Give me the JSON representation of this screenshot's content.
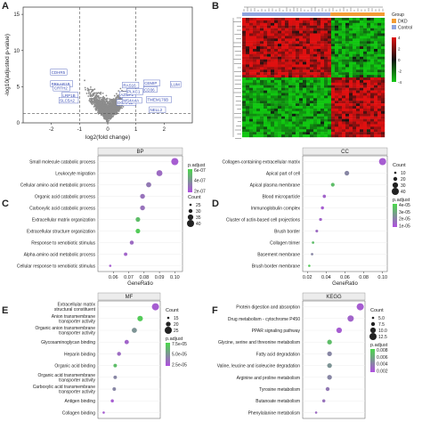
{
  "panels": {
    "A": "A",
    "B": "B",
    "C": "C",
    "D": "D",
    "E": "E",
    "F": "F"
  },
  "colors": {
    "up": "#c81e1e",
    "down": "#e8a33a",
    "ns": "#8c8c8c",
    "heat_high": "#e01010",
    "heat_low": "#11c711",
    "heat_mid": "#111111",
    "dkd": "#f39c34",
    "control": "#8fa5df",
    "padj_high": "#4ad94a",
    "padj_low": "#b04fe0"
  },
  "chart_data": [
    {
      "type": "scatter",
      "panel": "A",
      "xlabel": "log2(fold change)",
      "ylabel": "-log10(adjusted p-value)",
      "xlim": [
        -3,
        3
      ],
      "ylim": [
        0,
        16
      ],
      "xticks": [
        "-2",
        "-1",
        "0",
        "1",
        "2"
      ],
      "yticks": [
        "0",
        "5",
        "10",
        "15"
      ],
      "labeled_genes": [
        "CDHR5",
        "PRKAR1B",
        "CRTH2",
        "LRP1B",
        "SLC5A2",
        "RAS16",
        "AZGP1",
        "PLXC1",
        "CEMIP",
        "CD36",
        "DCAF12",
        "MS4A4A",
        "LUM",
        "NELL2",
        "TMEM176B"
      ]
    },
    {
      "type": "heatmap",
      "panel": "B",
      "legend_title": "Group",
      "groups": [
        "DKD",
        "Control"
      ],
      "scale_ticks": [
        "4",
        "2",
        "0",
        "-2",
        "-4"
      ]
    },
    {
      "type": "scatter",
      "panel": "C",
      "title": "BP",
      "xlabel": "GeneRatio",
      "xlim": [
        0.05,
        0.105
      ],
      "xticks": [
        "0.06",
        "0.07",
        "0.08",
        "0.09",
        "0.10"
      ],
      "categories": [
        "Small molecule catabolic process",
        "Leukocyte migration",
        "Cellular amino acid metabolic process",
        "Organic acid catabolic process",
        "Carboxylic acid catabolic process",
        "Extracellular matrix organization",
        "Extracellular structure organization",
        "Response to xenobiotic stimulus",
        "Alpha-amino acid metabolic process",
        "Cellular response to xenobiotic stimulus"
      ],
      "x": [
        0.1,
        0.09,
        0.083,
        0.079,
        0.079,
        0.076,
        0.076,
        0.072,
        0.068,
        0.058
      ],
      "count": [
        42,
        38,
        35,
        34,
        34,
        33,
        33,
        31,
        29,
        25
      ],
      "padj_legend": [
        "6e-07",
        "4e-07",
        "2e-07"
      ],
      "padj_color": [
        0.9,
        0.8,
        0.7,
        0.75,
        0.75,
        0.2,
        0.1,
        0.8,
        0.85,
        0.9
      ],
      "count_legend": [
        "25",
        "30",
        "35",
        "40"
      ]
    },
    {
      "type": "scatter",
      "panel": "D",
      "title": "CC",
      "xlabel": "GeneRatio",
      "xlim": [
        0.015,
        0.105
      ],
      "xticks": [
        "0.02",
        "0.04",
        "0.06",
        "0.08",
        "0.10"
      ],
      "categories": [
        "Collagen-containing extracellular matrix",
        "Apical part of cell",
        "Apical plasma membrane",
        "Blood microparticle",
        "Immunoglobulin complex",
        "Cluster of actin-based cell projections",
        "Brush border",
        "Collagen trimer",
        "Basement membrane",
        "Brush border membrane"
      ],
      "x": [
        0.1,
        0.062,
        0.047,
        0.038,
        0.036,
        0.034,
        0.03,
        0.026,
        0.025,
        0.022
      ],
      "count": [
        40,
        24,
        18,
        15,
        14,
        13,
        12,
        10,
        10,
        9
      ],
      "padj_legend": [
        "4e-05",
        "3e-05",
        "2e-05",
        "1e-05"
      ],
      "padj_color": [
        0.9,
        0.6,
        0.2,
        0.85,
        0.9,
        0.85,
        0.8,
        0.2,
        0.6,
        0.1
      ],
      "count_legend": [
        "10",
        "20",
        "30",
        "40"
      ]
    },
    {
      "type": "scatter",
      "panel": "E",
      "title": "MF",
      "categories": [
        "Extracellular matrix structural constituent",
        "Anion transmembrane transporter activity",
        "Organic anion transmembrane transporter activity",
        "Glycosaminoglycan binding",
        "Heparin binding",
        "Organic acid binding",
        "Organic acid transmembrane transporter activity",
        "Carboxylic acid transmembrane transporter activity",
        "Antigen binding",
        "Collagen binding"
      ],
      "x": [
        0.1,
        0.084,
        0.078,
        0.07,
        0.062,
        0.058,
        0.058,
        0.057,
        0.055,
        0.046
      ],
      "count": [
        22,
        18,
        17,
        15,
        14,
        13,
        13,
        13,
        12,
        10
      ],
      "padj_legend": [
        "7.5e-05",
        "5.0e-05",
        "2.5e-05"
      ],
      "padj_color": [
        0.9,
        0.1,
        0.5,
        0.85,
        0.8,
        0.2,
        0.6,
        0.6,
        0.9,
        0.9
      ],
      "count_legend": [
        "15",
        "20",
        "25"
      ]
    },
    {
      "type": "scatter",
      "panel": "F",
      "title": "KEGG",
      "categories": [
        "Protein digestion and absorption",
        "Drug metabolism - cytochrome P450",
        "PPAR signaling pathway",
        "Glycine, serine and threonine metabolism",
        "Fatty acid degradation",
        "Valine, leucine and isoleucine degradation",
        "Arginine and proline metabolism",
        "Tyrosine metabolism",
        "Butanoate metabolism",
        "Phenylalanine metabolism"
      ],
      "x": [
        0.1,
        0.09,
        0.078,
        0.068,
        0.068,
        0.068,
        0.068,
        0.066,
        0.062,
        0.054
      ],
      "count": [
        12,
        11,
        10,
        9,
        9,
        9,
        9,
        8,
        7,
        6
      ],
      "padj_legend": [
        "0.008",
        "0.006",
        "0.004",
        "0.002"
      ],
      "padj_color": [
        0.9,
        0.85,
        0.9,
        0.2,
        0.6,
        0.5,
        0.6,
        0.7,
        0.75,
        0.8
      ],
      "count_legend": [
        "5.0",
        "7.5",
        "10.0",
        "12.5"
      ]
    }
  ],
  "legend_titles": {
    "padj": "p.adjust",
    "count": "Count"
  }
}
